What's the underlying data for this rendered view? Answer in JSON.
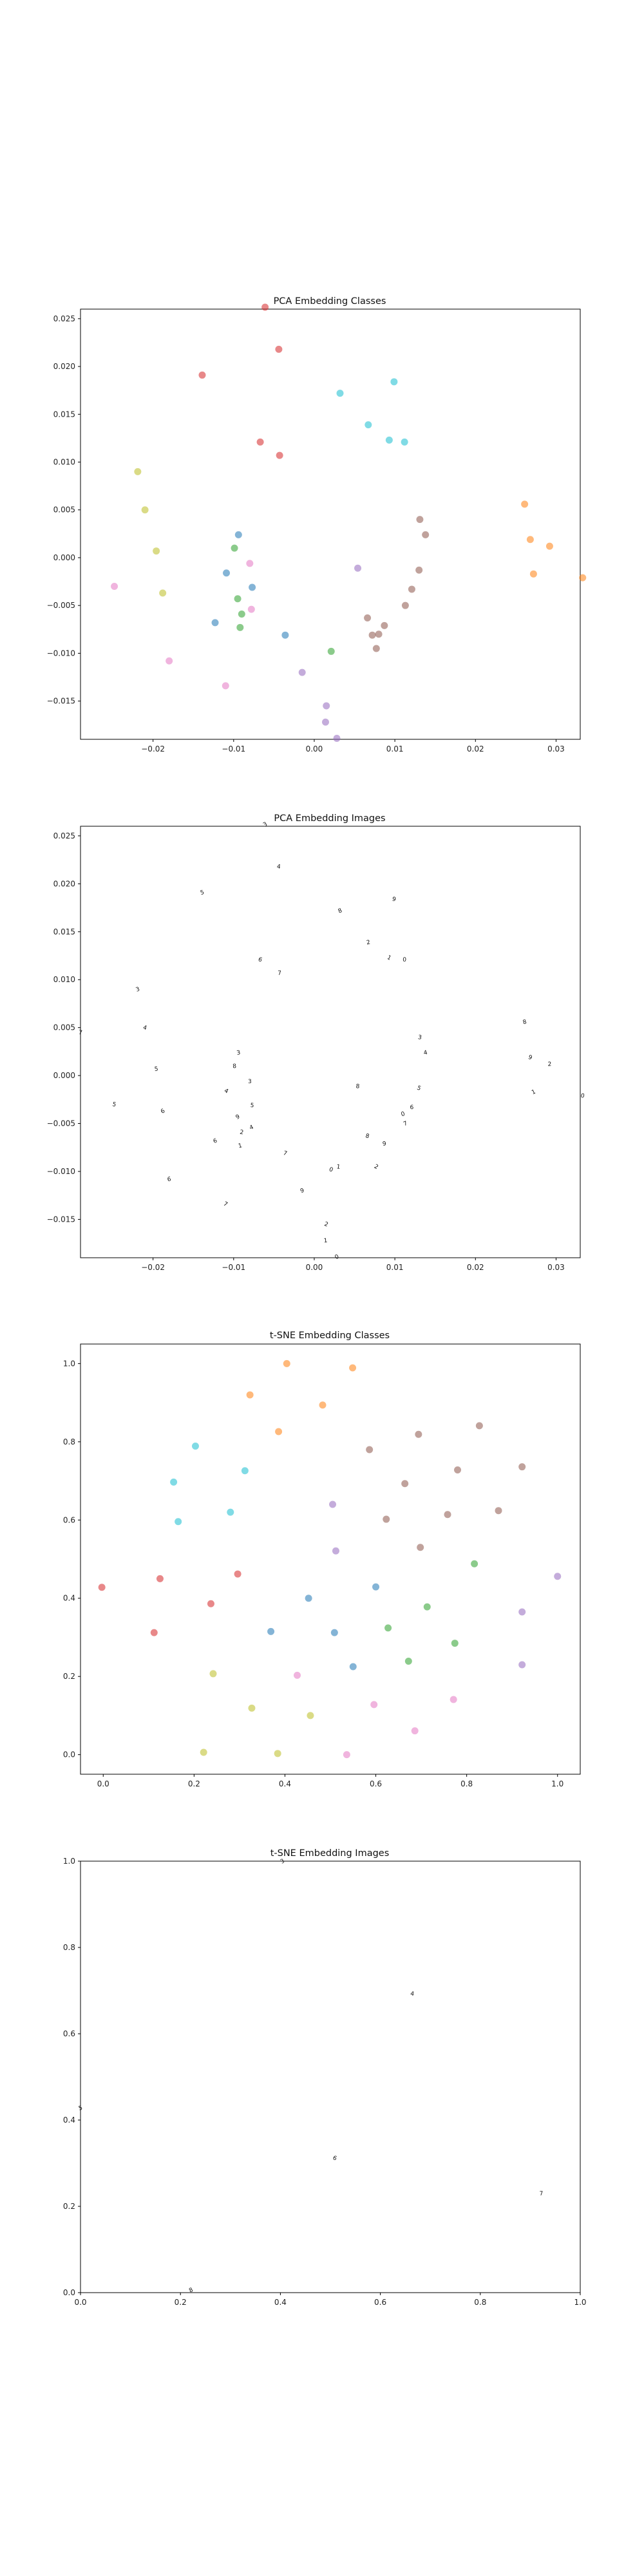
{
  "chart_data": [
    {
      "type": "scatter",
      "title": "PCA Embedding Classes",
      "xlabel": "",
      "ylabel": "",
      "xlim": [
        -0.029,
        0.033
      ],
      "ylim": [
        -0.019,
        0.026
      ],
      "xticks": [
        -0.02,
        -0.01,
        0.0,
        0.01,
        0.02,
        0.03
      ],
      "yticks": [
        -0.015,
        -0.01,
        -0.005,
        0.0,
        0.005,
        0.01,
        0.015,
        0.02,
        0.025
      ],
      "xtick_labels": [
        "−0.02",
        "−0.01",
        "0.00",
        "0.01",
        "0.02",
        "0.03"
      ],
      "ytick_labels": [
        "−0.015",
        "−0.010",
        "−0.005",
        "0.000",
        "0.005",
        "0.010",
        "0.015",
        "0.020",
        "0.025"
      ],
      "grid": false,
      "series": [
        {
          "color": "#d62728",
          "points": [
            [
              -0.0061,
              0.0262
            ],
            [
              -0.0044,
              0.0218
            ],
            [
              -0.0139,
              0.0191
            ],
            [
              -0.0067,
              0.0121
            ],
            [
              -0.0043,
              0.0107
            ]
          ]
        },
        {
          "color": "#17becf",
          "points": [
            [
              0.0032,
              0.0172
            ],
            [
              0.0099,
              0.0184
            ],
            [
              0.0067,
              0.0139
            ],
            [
              0.0093,
              0.0123
            ],
            [
              0.0112,
              0.0121
            ]
          ]
        },
        {
          "color": "#bcbd22",
          "points": [
            [
              -0.0219,
              0.009
            ],
            [
              -0.021,
              0.005
            ],
            [
              -0.0196,
              0.0007
            ],
            [
              -0.0188,
              -0.0037
            ]
          ]
        },
        {
          "color": "#ff7f0e",
          "points": [
            [
              0.0261,
              0.0056
            ],
            [
              0.0268,
              0.0019
            ],
            [
              0.0292,
              0.0012
            ],
            [
              0.0272,
              -0.0017
            ],
            [
              0.0333,
              -0.0021
            ]
          ]
        },
        {
          "color": "#1f77b4",
          "points": [
            [
              -0.0094,
              0.0024
            ],
            [
              -0.0109,
              -0.0016
            ],
            [
              -0.0077,
              -0.0031
            ],
            [
              -0.0123,
              -0.0068
            ],
            [
              -0.0036,
              -0.0081
            ]
          ]
        },
        {
          "color": "#2ca02c",
          "points": [
            [
              -0.0099,
              0.001
            ],
            [
              -0.0095,
              -0.0043
            ],
            [
              -0.009,
              -0.0059
            ],
            [
              -0.0092,
              -0.0073
            ],
            [
              0.0021,
              -0.0098
            ]
          ]
        },
        {
          "color": "#e377c2",
          "points": [
            [
              -0.008,
              -0.0006
            ],
            [
              -0.0078,
              -0.0054
            ],
            [
              -0.0248,
              -0.003
            ],
            [
              -0.018,
              -0.0108
            ],
            [
              -0.011,
              -0.0134
            ]
          ]
        },
        {
          "color": "#9467bd",
          "points": [
            [
              0.0054,
              -0.0011
            ],
            [
              -0.0015,
              -0.012
            ],
            [
              0.0015,
              -0.0155
            ],
            [
              0.0014,
              -0.0172
            ],
            [
              0.0028,
              -0.0189
            ]
          ]
        },
        {
          "color": "#8c564b",
          "points": [
            [
              0.0131,
              0.004
            ],
            [
              0.0138,
              0.0024
            ],
            [
              0.013,
              -0.0013
            ],
            [
              0.0121,
              -0.0033
            ],
            [
              0.0113,
              -0.005
            ],
            [
              0.0066,
              -0.0063
            ],
            [
              0.0087,
              -0.0071
            ],
            [
              0.0072,
              -0.0081
            ],
            [
              0.008,
              -0.008
            ],
            [
              0.0077,
              -0.0095
            ]
          ]
        }
      ]
    },
    {
      "type": "scatter",
      "title": "PCA Embedding Images",
      "xlabel": "",
      "ylabel": "",
      "xlim": [
        -0.029,
        0.033
      ],
      "ylim": [
        -0.019,
        0.026
      ],
      "xticks": [
        -0.02,
        -0.01,
        0.0,
        0.01,
        0.02,
        0.03
      ],
      "yticks": [
        -0.015,
        -0.01,
        -0.005,
        0.0,
        0.005,
        0.01,
        0.015,
        0.02,
        0.025
      ],
      "xtick_labels": [
        "−0.02",
        "−0.01",
        "0.00",
        "0.01",
        "0.02",
        "0.03"
      ],
      "ytick_labels": [
        "−0.015",
        "−0.010",
        "−0.005",
        "0.000",
        "0.005",
        "0.010",
        "0.015",
        "0.020",
        "0.025"
      ],
      "grid": false,
      "marker": "image",
      "points": [
        [
          -0.0061,
          0.0262
        ],
        [
          -0.0044,
          0.0218
        ],
        [
          -0.0139,
          0.0191
        ],
        [
          -0.0067,
          0.0121
        ],
        [
          -0.0043,
          0.0107
        ],
        [
          0.0032,
          0.0172
        ],
        [
          0.0099,
          0.0184
        ],
        [
          0.0067,
          0.0139
        ],
        [
          0.0093,
          0.0123
        ],
        [
          0.0112,
          0.0121
        ],
        [
          -0.0219,
          0.009
        ],
        [
          -0.021,
          0.005
        ],
        [
          -0.0196,
          0.0007
        ],
        [
          -0.0188,
          -0.0037
        ],
        [
          -0.029,
          0.0045
        ],
        [
          0.0261,
          0.0056
        ],
        [
          0.0268,
          0.0019
        ],
        [
          0.0292,
          0.0012
        ],
        [
          0.0272,
          -0.0017
        ],
        [
          0.0333,
          -0.0021
        ],
        [
          -0.0094,
          0.0024
        ],
        [
          -0.0109,
          -0.0016
        ],
        [
          -0.0077,
          -0.0031
        ],
        [
          -0.0123,
          -0.0068
        ],
        [
          -0.0036,
          -0.0081
        ],
        [
          -0.0099,
          0.001
        ],
        [
          -0.0095,
          -0.0043
        ],
        [
          -0.009,
          -0.0059
        ],
        [
          -0.0092,
          -0.0073
        ],
        [
          0.0021,
          -0.0098
        ],
        [
          -0.008,
          -0.0006
        ],
        [
          -0.0078,
          -0.0054
        ],
        [
          -0.0248,
          -0.003
        ],
        [
          -0.018,
          -0.0108
        ],
        [
          -0.011,
          -0.0134
        ],
        [
          0.0054,
          -0.0011
        ],
        [
          -0.0015,
          -0.012
        ],
        [
          0.0015,
          -0.0155
        ],
        [
          0.0014,
          -0.0172
        ],
        [
          0.0028,
          -0.0189
        ],
        [
          0.0131,
          0.004
        ],
        [
          0.0138,
          0.0024
        ],
        [
          0.013,
          -0.0013
        ],
        [
          0.0121,
          -0.0033
        ],
        [
          0.0113,
          -0.005
        ],
        [
          0.0066,
          -0.0063
        ],
        [
          0.0087,
          -0.0071
        ],
        [
          0.0077,
          -0.0095
        ],
        [
          0.003,
          -0.0095
        ],
        [
          0.011,
          -0.004
        ]
      ]
    },
    {
      "type": "scatter",
      "title": "t-SNE Embedding Classes",
      "xlabel": "",
      "ylabel": "",
      "xlim": [
        -0.05,
        1.05
      ],
      "ylim": [
        -0.05,
        1.05
      ],
      "xticks": [
        0.0,
        0.2,
        0.4,
        0.6,
        0.8,
        1.0
      ],
      "yticks": [
        0.0,
        0.2,
        0.4,
        0.6,
        0.8,
        1.0
      ],
      "xtick_labels": [
        "0.0",
        "0.2",
        "0.4",
        "0.6",
        "0.8",
        "1.0"
      ],
      "ytick_labels": [
        "0.0",
        "0.2",
        "0.4",
        "0.6",
        "0.8",
        "1.0"
      ],
      "grid": false,
      "series": [
        {
          "color": "#ff7f0e",
          "points": [
            [
              0.404,
              1.0
            ],
            [
              0.549,
              0.989
            ],
            [
              0.323,
              0.92
            ],
            [
              0.483,
              0.894
            ],
            [
              0.386,
              0.826
            ]
          ]
        },
        {
          "color": "#17becf",
          "points": [
            [
              0.203,
              0.789
            ],
            [
              0.312,
              0.726
            ],
            [
              0.155,
              0.697
            ],
            [
              0.165,
              0.596
            ],
            [
              0.28,
              0.62
            ]
          ]
        },
        {
          "color": "#8c564b",
          "points": [
            [
              0.586,
              0.78
            ],
            [
              0.694,
              0.819
            ],
            [
              0.828,
              0.841
            ],
            [
              0.664,
              0.693
            ],
            [
              0.78,
              0.728
            ],
            [
              0.623,
              0.602
            ],
            [
              0.758,
              0.614
            ],
            [
              0.87,
              0.624
            ],
            [
              0.922,
              0.736
            ],
            [
              0.698,
              0.53
            ]
          ]
        },
        {
          "color": "#9467bd",
          "points": [
            [
              0.505,
              0.64
            ],
            [
              0.512,
              0.521
            ]
          ]
        },
        {
          "color": "#d62728",
          "points": [
            [
              -0.003,
              0.428
            ],
            [
              0.125,
              0.45
            ],
            [
              0.237,
              0.386
            ],
            [
              0.296,
              0.462
            ],
            [
              0.112,
              0.312
            ]
          ]
        },
        {
          "color": "#1f77b4",
          "points": [
            [
              0.452,
              0.4
            ],
            [
              0.6,
              0.429
            ],
            [
              0.369,
              0.315
            ],
            [
              0.509,
              0.312
            ],
            [
              0.55,
              0.225
            ]
          ]
        },
        {
          "color": "#2ca02c",
          "points": [
            [
              0.817,
              0.488
            ],
            [
              0.713,
              0.378
            ],
            [
              0.627,
              0.324
            ],
            [
              0.774,
              0.285
            ],
            [
              0.672,
              0.239
            ]
          ]
        },
        {
          "color": "#9467bd",
          "points": [
            [
              1.0,
              0.456
            ],
            [
              0.922,
              0.365
            ],
            [
              0.922,
              0.23
            ]
          ]
        },
        {
          "color": "#bcbd22",
          "points": [
            [
              0.242,
              0.207
            ],
            [
              0.327,
              0.119
            ],
            [
              0.221,
              0.006
            ],
            [
              0.456,
              0.1
            ],
            [
              0.384,
              0.003
            ]
          ]
        },
        {
          "color": "#e377c2",
          "points": [
            [
              0.427,
              0.203
            ],
            [
              0.596,
              0.128
            ],
            [
              0.771,
              0.141
            ],
            [
              0.686,
              0.061
            ],
            [
              0.536,
              0.0
            ]
          ]
        }
      ]
    },
    {
      "type": "scatter",
      "title": "t-SNE Embedding Images",
      "xlabel": "",
      "ylabel": "",
      "xlim": [
        0.0,
        1.0
      ],
      "ylim": [
        0.0,
        1.0
      ],
      "xticks": [
        0.0,
        0.2,
        0.4,
        0.6,
        0.8,
        1.0
      ],
      "yticks": [
        0.0,
        0.2,
        0.4,
        0.6,
        0.8,
        1.0
      ],
      "xtick_labels": [
        "0.0",
        "0.2",
        "0.4",
        "0.6",
        "0.8",
        "1.0"
      ],
      "ytick_labels": [
        "0.0",
        "0.2",
        "0.4",
        "0.6",
        "0.8",
        "1.0"
      ],
      "grid": false,
      "marker": "image",
      "points": [
        [
          0.404,
          1.0
        ],
        [
          0.664,
          0.693
        ],
        [
          0.0,
          0.428
        ],
        [
          0.509,
          0.312
        ],
        [
          0.922,
          0.23
        ],
        [
          0.221,
          0.006
        ]
      ]
    }
  ]
}
